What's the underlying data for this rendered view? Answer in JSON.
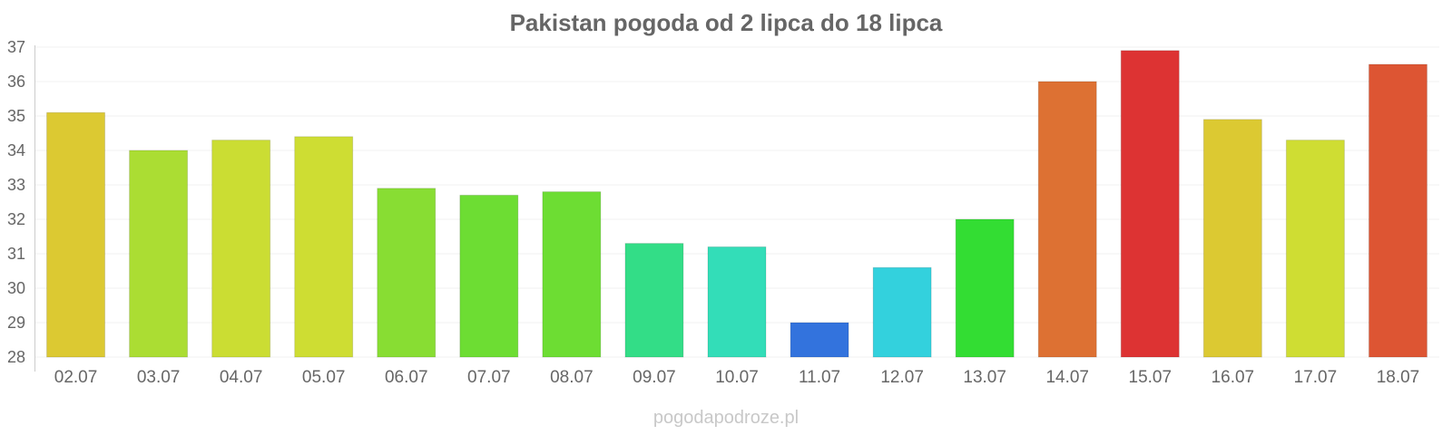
{
  "chart_data": {
    "type": "bar",
    "title": "Pakistan pogoda od 2 lipca do 18 lipca",
    "xlabel": "",
    "ylabel": "",
    "ylim": [
      28,
      37
    ],
    "yticks": [
      28,
      29,
      30,
      31,
      32,
      33,
      34,
      35,
      36,
      37
    ],
    "grid": true,
    "categories": [
      "02.07",
      "03.07",
      "04.07",
      "05.07",
      "06.07",
      "07.07",
      "08.07",
      "09.07",
      "10.07",
      "11.07",
      "12.07",
      "13.07",
      "14.07",
      "15.07",
      "16.07",
      "17.07",
      "18.07"
    ],
    "values": [
      35.1,
      34.0,
      34.3,
      34.4,
      32.9,
      32.7,
      32.8,
      31.3,
      31.2,
      29.0,
      30.6,
      32.0,
      36.0,
      36.9,
      34.9,
      34.3,
      36.5
    ],
    "colors": [
      "#dcc932",
      "#abdd33",
      "#cbdd33",
      "#cedd33",
      "#88dd33",
      "#6ddd33",
      "#6ddd33",
      "#33dd87",
      "#33ddb8",
      "#3373dd",
      "#33d1dd",
      "#33dd33",
      "#dd7133",
      "#dd3333",
      "#dcc932",
      "#cfdd33",
      "#dd5533"
    ]
  },
  "watermark": "pogodapodroze.pl"
}
